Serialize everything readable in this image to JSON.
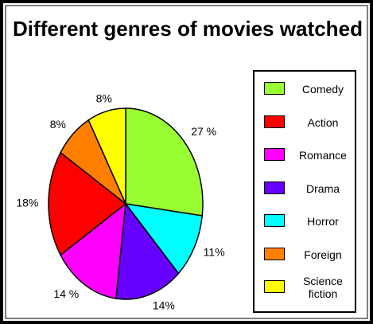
{
  "chart_data": {
    "type": "pie",
    "title": "Different genres of movies watched",
    "slices": [
      {
        "value": 27,
        "value_label": "27 %",
        "color": "#99ff33"
      },
      {
        "value": 11,
        "value_label": "11%",
        "color": "#00ffff"
      },
      {
        "value": 14,
        "value_label": "14%",
        "color": "#6600ff"
      },
      {
        "value": 14,
        "value_label": "14 %",
        "color": "#ff00ff"
      },
      {
        "value": 18,
        "value_label": "18%",
        "color": "#ff0000"
      },
      {
        "value": 8,
        "value_label": "8%",
        "color": "#ff8000"
      },
      {
        "value": 8,
        "value_label": "8%",
        "color": "#ffff00"
      }
    ],
    "legend": [
      {
        "name": "Comedy",
        "color": "#99ff33"
      },
      {
        "name": "Action",
        "color": "#ff0000"
      },
      {
        "name": "Romance",
        "color": "#ff00ff"
      },
      {
        "name": "Drama",
        "color": "#6600ff"
      },
      {
        "name": "Horror",
        "color": "#00ffff"
      },
      {
        "name": "Foreign",
        "color": "#ff8000"
      },
      {
        "name": "Science fiction",
        "color": "#ffff00"
      }
    ]
  }
}
